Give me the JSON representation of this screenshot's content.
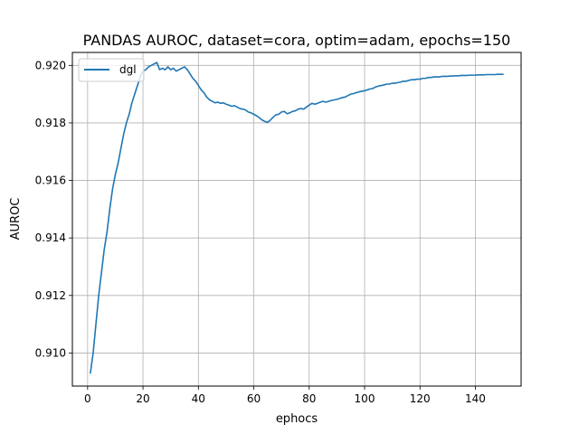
{
  "chart_data": {
    "type": "line",
    "title": "PANDAS AUROC, dataset=cora, optim=adam, epochs=150",
    "xlabel": "ephocs",
    "ylabel": "AUROC",
    "xlim": [
      -5.5,
      156.5
    ],
    "ylim": [
      0.90885,
      0.92045
    ],
    "xticks": [
      0,
      20,
      40,
      60,
      80,
      100,
      120,
      140
    ],
    "yticks": [
      0.91,
      0.912,
      0.914,
      0.916,
      0.918,
      0.92
    ],
    "ytick_labels": [
      "0.910",
      "0.912",
      "0.914",
      "0.916",
      "0.918",
      "0.920"
    ],
    "grid": true,
    "legend_position": "upper-left",
    "series": [
      {
        "name": "dgl",
        "color": "#1f77b4",
        "x": [
          1,
          2,
          3,
          4,
          5,
          6,
          7,
          8,
          9,
          10,
          11,
          12,
          13,
          14,
          15,
          16,
          17,
          18,
          19,
          20,
          21,
          22,
          23,
          24,
          25,
          26,
          27,
          28,
          29,
          30,
          31,
          32,
          33,
          34,
          35,
          36,
          37,
          38,
          39,
          40,
          41,
          42,
          43,
          44,
          45,
          46,
          47,
          48,
          49,
          50,
          51,
          52,
          53,
          54,
          55,
          56,
          57,
          58,
          59,
          60,
          61,
          62,
          63,
          64,
          65,
          66,
          67,
          68,
          69,
          70,
          71,
          72,
          73,
          74,
          75,
          76,
          77,
          78,
          79,
          80,
          81,
          82,
          83,
          84,
          85,
          86,
          87,
          88,
          89,
          90,
          91,
          92,
          93,
          94,
          95,
          96,
          97,
          98,
          99,
          100,
          101,
          102,
          103,
          104,
          105,
          106,
          107,
          108,
          109,
          110,
          111,
          112,
          113,
          114,
          115,
          116,
          117,
          118,
          119,
          120,
          121,
          122,
          123,
          124,
          125,
          126,
          127,
          128,
          129,
          130,
          131,
          132,
          133,
          134,
          135,
          136,
          137,
          138,
          139,
          140,
          141,
          142,
          143,
          144,
          145,
          146,
          147,
          148,
          149,
          150
        ],
        "y": [
          0.9093,
          0.91,
          0.911,
          0.912,
          0.9128,
          0.9136,
          0.9142,
          0.915,
          0.9157,
          0.9162,
          0.9166,
          0.9171,
          0.9176,
          0.918,
          0.9183,
          0.9187,
          0.919,
          0.9193,
          0.9196,
          0.9198,
          0.91985,
          0.91995,
          0.92,
          0.92005,
          0.9201,
          0.91985,
          0.9199,
          0.91985,
          0.91995,
          0.91985,
          0.9199,
          0.9198,
          0.91985,
          0.9199,
          0.91995,
          0.91985,
          0.9197,
          0.91955,
          0.91945,
          0.9193,
          0.91915,
          0.91905,
          0.9189,
          0.9188,
          0.91875,
          0.9187,
          0.91872,
          0.91868,
          0.9187,
          0.91865,
          0.91862,
          0.91858,
          0.9186,
          0.91855,
          0.9185,
          0.91848,
          0.91845,
          0.91838,
          0.91835,
          0.9183,
          0.91825,
          0.91818,
          0.9181,
          0.91805,
          0.91802,
          0.9181,
          0.9182,
          0.91828,
          0.9183,
          0.91838,
          0.9184,
          0.91832,
          0.91835,
          0.9184,
          0.91842,
          0.91848,
          0.9185,
          0.91848,
          0.91855,
          0.91862,
          0.91868,
          0.91865,
          0.91868,
          0.91872,
          0.91875,
          0.91872,
          0.91875,
          0.91878,
          0.9188,
          0.91882,
          0.91885,
          0.91888,
          0.9189,
          0.91895,
          0.919,
          0.91902,
          0.91905,
          0.91908,
          0.9191,
          0.91912,
          0.91915,
          0.91918,
          0.9192,
          0.91925,
          0.91928,
          0.9193,
          0.91932,
          0.91935,
          0.91935,
          0.91938,
          0.91938,
          0.9194,
          0.91942,
          0.91945,
          0.91945,
          0.91948,
          0.9195,
          0.9195,
          0.91952,
          0.91952,
          0.91955,
          0.91955,
          0.91958,
          0.91958,
          0.9196,
          0.9196,
          0.9196,
          0.91962,
          0.91962,
          0.91962,
          0.91963,
          0.91963,
          0.91964,
          0.91964,
          0.91965,
          0.91965,
          0.91965,
          0.91966,
          0.91966,
          0.91966,
          0.91967,
          0.91967,
          0.91967,
          0.91968,
          0.91968,
          0.91968,
          0.91968,
          0.91969,
          0.91969,
          0.91969
        ]
      }
    ]
  }
}
